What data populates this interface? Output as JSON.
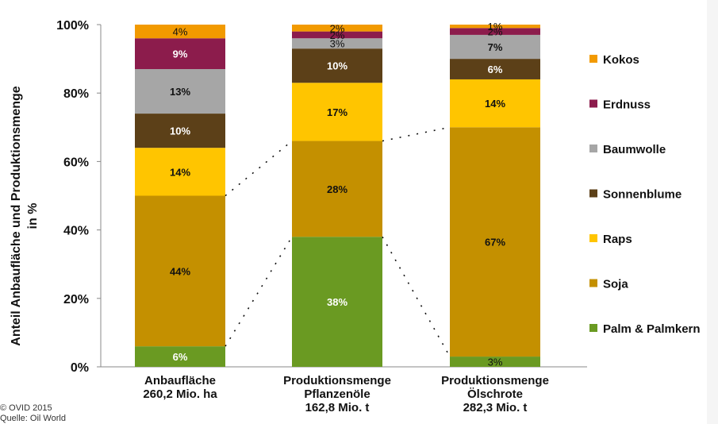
{
  "chart_data": {
    "type": "bar",
    "stacked": true,
    "ylabel": [
      "Anteil Anbaufläche und Produktionsmenge",
      "in %"
    ],
    "ylim": [
      0,
      100
    ],
    "yticks": [
      "0%",
      "20%",
      "40%",
      "60%",
      "80%",
      "100%"
    ],
    "grid": false,
    "legend_position": "right",
    "categories": [
      [
        "Anbaufläche",
        "260,2 Mio. ha"
      ],
      [
        "Produktionsmenge",
        "Pflanzenöle",
        "162,8 Mio. t"
      ],
      [
        "Produktionsmenge",
        "Ölschrote",
        "282,3 Mio. t"
      ]
    ],
    "series": [
      {
        "name": "Palm & Palmkern",
        "color": "#6a9a22",
        "label_color": "#ffffff",
        "values": [
          6,
          38,
          3
        ]
      },
      {
        "name": "Soja",
        "color": "#c49000",
        "label_color": "#111111",
        "values": [
          44,
          28,
          67
        ]
      },
      {
        "name": "Raps",
        "color": "#ffc500",
        "label_color": "#111111",
        "values": [
          14,
          17,
          14
        ]
      },
      {
        "name": "Sonnenblume",
        "color": "#5c4018",
        "label_color": "#ffffff",
        "values": [
          10,
          10,
          6
        ]
      },
      {
        "name": "Baumwolle",
        "color": "#a6a6a6",
        "label_color": "#111111",
        "values": [
          13,
          3,
          7
        ]
      },
      {
        "name": "Erdnuss",
        "color": "#8c1c4c",
        "label_color": "#ffffff",
        "values": [
          9,
          2,
          2
        ]
      },
      {
        "name": "Kokos",
        "color": "#f29a00",
        "label_color": "#111111",
        "values": [
          4,
          2,
          1
        ]
      }
    ],
    "value_labels": [
      [
        "6%",
        "44%",
        "14%",
        "10%",
        "13%",
        "9%",
        "4%"
      ],
      [
        "38%",
        "28%",
        "17%",
        "10%",
        "3%",
        "2%",
        "2%"
      ],
      [
        "3%",
        "67%",
        "14%",
        "6%",
        "7%",
        "2%",
        "1%"
      ]
    ],
    "legend_order": [
      "Kokos",
      "Erdnuss",
      "Baumwolle",
      "Sonnenblume",
      "Raps",
      "Soja",
      "Palm & Palmkern"
    ]
  },
  "credit": {
    "line1": "© OVID 2015",
    "line2": "Quelle: Oil World"
  }
}
